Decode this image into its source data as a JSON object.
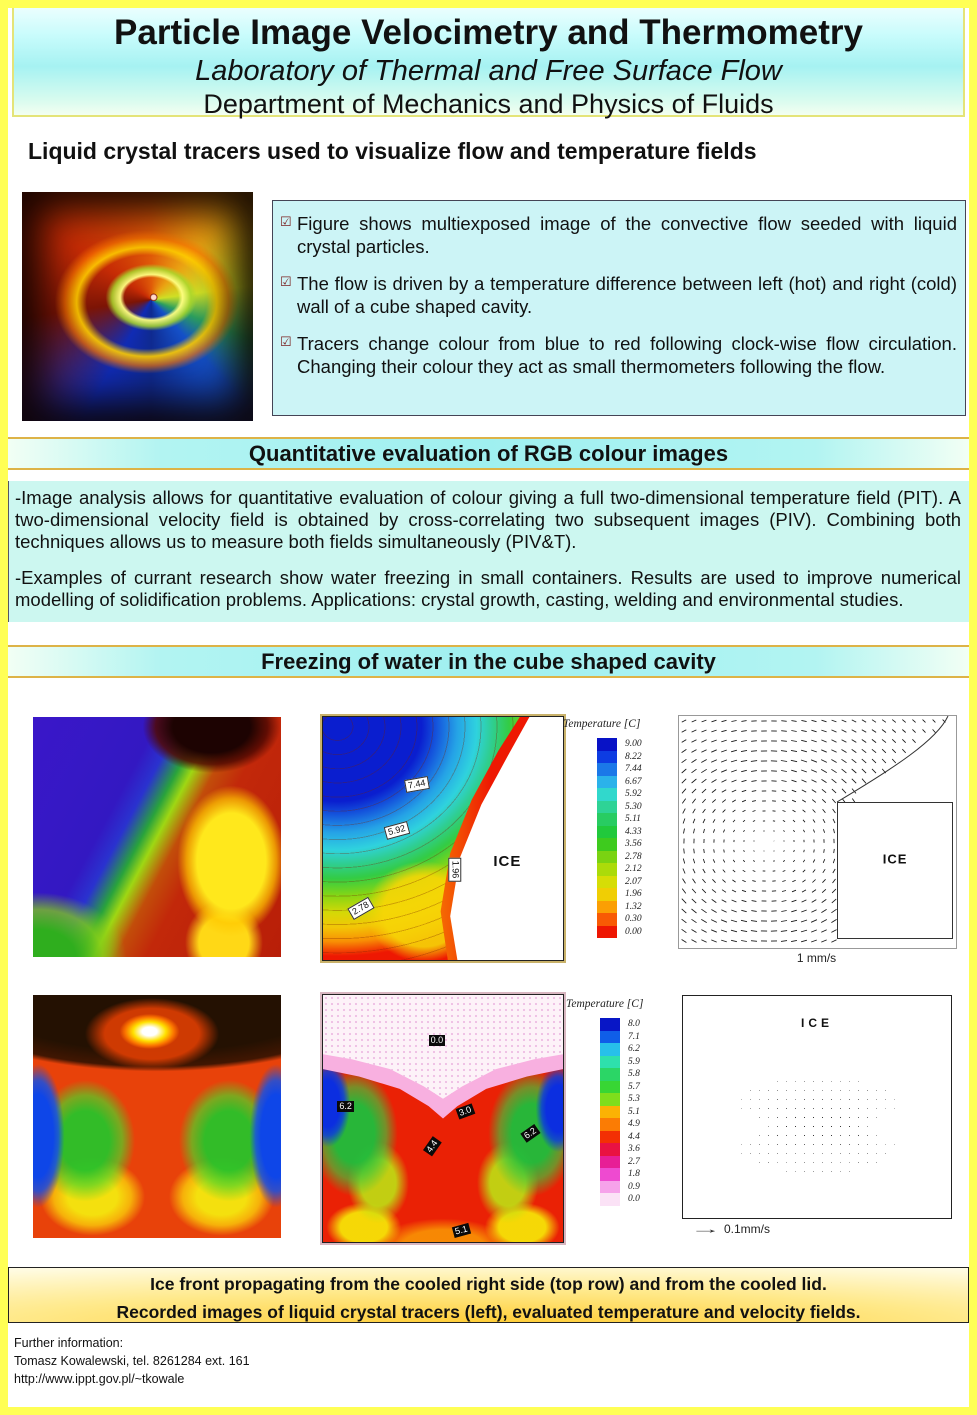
{
  "header": {
    "title": "Particle Image Velocimetry and Thermometry",
    "subtitle": "Laboratory of Thermal and Free Surface Flow",
    "department": "Department of Mechanics and Physics of Fluids"
  },
  "icons": {
    "bullet_check": "☑"
  },
  "section_lc": {
    "heading": "Liquid crystal tracers used to visualize flow and temperature fields",
    "bullets": [
      "Figure shows multiexposed image of the convective flow seeded  with liquid crystal particles.",
      "The flow  is driven by a  temperature difference between left (hot)  and  right  (cold) wall of a cube shaped cavity.",
      "Tracers change colour from blue to red following clock-wise flow circulation. Changing their colour they act as small thermometers following the flow."
    ]
  },
  "section_rgb": {
    "banner": "Quantitative evaluation of RGB colour images",
    "paragraphs": [
      "-Image analysis allows for quantitative evaluation of colour giving a full two-dimensional temperature field (PIT). A two-dimensional velocity field is obtained by cross-correlating two subsequent images (PIV). Combining both techniques allows us to measure both fields simultaneously (PIV&T).",
      "-Examples of currant research show water freezing in small containers. Results are used to improve numerical modelling of solidification problems. Applications: crystal  growth, casting, welding and  environmental studies."
    ]
  },
  "section_freezing": {
    "banner": "Freezing of water in the cube shaped cavity"
  },
  "chart_data": [
    {
      "type": "heatmap",
      "title": "Temperature [C]",
      "legend_position": "right",
      "legend_labels": [
        "9.00",
        "8.22",
        "7.44",
        "6.67",
        "5.92",
        "5.30",
        "5.11",
        "4.33",
        "3.56",
        "2.78",
        "2.12",
        "2.07",
        "1.96",
        "1.32",
        "0.30",
        "0.00"
      ],
      "legend_colors": [
        "#0812c6",
        "#0d3ce2",
        "#1b78e8",
        "#2bb2ea",
        "#31d8cc",
        "#2ed396",
        "#28cc62",
        "#21c93c",
        "#3ecb1e",
        "#7ad312",
        "#abdb0a",
        "#d6dd06",
        "#f0ce04",
        "#fb9f04",
        "#f85a04",
        "#ee1602"
      ],
      "contour_labels": [
        "7.44",
        "5.92",
        "1.96",
        "2.78"
      ],
      "annotations": [
        "ICE"
      ]
    },
    {
      "type": "heatmap",
      "title": "Temperature [C]",
      "legend_position": "right",
      "legend_labels": [
        "8.0",
        "7.1",
        "6.2",
        "5.9",
        "5.8",
        "5.7",
        "5.3",
        "5.1",
        "4.9",
        "4.4",
        "3.6",
        "2.7",
        "1.8",
        "0.9",
        "0.0"
      ],
      "legend_colors": [
        "#0816c6",
        "#0f5ee8",
        "#27c0ea",
        "#2ee0ac",
        "#2bd666",
        "#38d634",
        "#7ede1c",
        "#fbb204",
        "#fb7c04",
        "#f33004",
        "#e91242",
        "#e71e96",
        "#ee4ad0",
        "#f6a2ea",
        "#fbe2f6"
      ],
      "contour_labels": [
        "0.0",
        "6.2",
        "3.0",
        "4.4",
        "6.2",
        "5.1"
      ],
      "annotations": [
        "ICE"
      ]
    },
    {
      "type": "vector-field",
      "annotations": [
        "ICE"
      ],
      "scale_label": "1 mm/s"
    },
    {
      "type": "vector-field",
      "annotations": [
        "ICE"
      ],
      "scale_label": "0.1mm/s"
    }
  ],
  "caption": {
    "line1": "Ice front propagating from the cooled right side (top row) and from the cooled lid.",
    "line2": "Recorded  images of liquid crystal tracers (left), evaluated temperature and velocity  fields."
  },
  "footer": {
    "line1": "Further information:",
    "line2": "Tomasz Kowalewski, tel. 8261284 ext. 161",
    "line3": "http://www.ippt.gov.pl/~tkowale"
  }
}
